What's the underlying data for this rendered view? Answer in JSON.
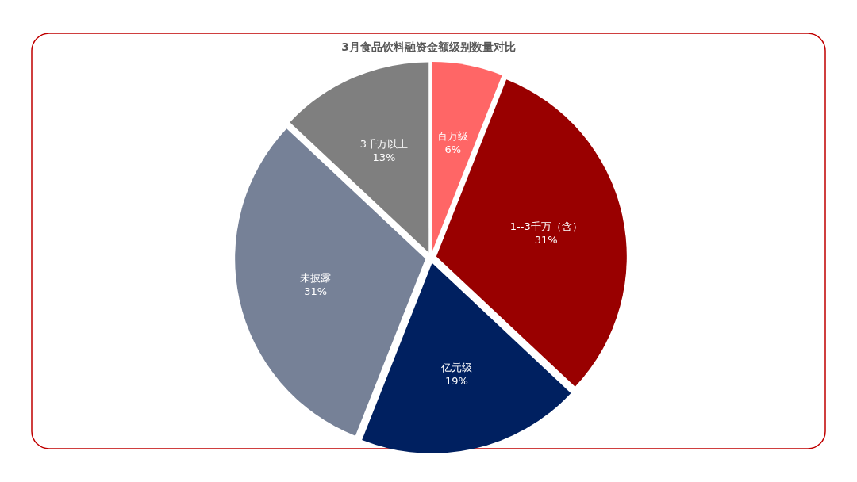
{
  "chart_data": {
    "type": "pie",
    "title": "3月食品饮料融资金额级别数量对比",
    "categories": [
      "百万级",
      "1--3千万（含）",
      "亿元级",
      "未披露",
      "3千万以上"
    ],
    "values": [
      6,
      31,
      19,
      31,
      13
    ],
    "colors": [
      "#ff6666",
      "#990000",
      "#002060",
      "#768197",
      "#7f7f7f"
    ],
    "value_labels": [
      "6%",
      "31%",
      "19%",
      "31%",
      "13%"
    ]
  }
}
